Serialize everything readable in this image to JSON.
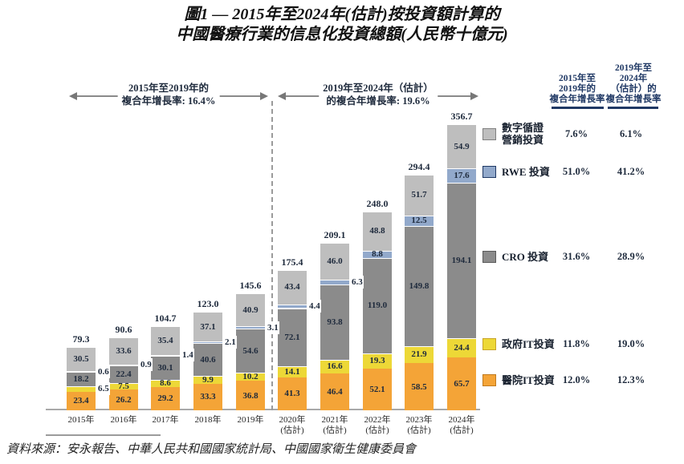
{
  "title": {
    "line1": "圖1 — 2015年至2024年(估計)按投資額計算的",
    "line2": "中國醫療行業的信息化投資總額(人民幣十億元)"
  },
  "period_annotations": {
    "left": {
      "line1": "2015年至2019年的",
      "line2": "複合年增長率: 16.4%"
    },
    "right": {
      "line1": "2019年至2024年（估計）",
      "line2": "的複合年增長率: 19.6%"
    }
  },
  "cagr_columns": {
    "col1_header": "2015年至\n2019年的\n複合年增長率",
    "col2_header": "2019年至\n2024年\n（估計）的\n複合年增長率"
  },
  "chart_data": {
    "type": "bar",
    "stacked": true,
    "title": "中國醫療行業的信息化投資總額",
    "unit": "人民幣十億元",
    "ylim": [
      0,
      360
    ],
    "gridlines": false,
    "categories": [
      "2015年",
      "2016年",
      "2017年",
      "2018年",
      "2019年",
      "2020年\n(估計)",
      "2021年\n(估計)",
      "2022年\n(估計)",
      "2023年\n(估計)",
      "2024年\n(估計)"
    ],
    "series": [
      {
        "key": "hospital-it",
        "name": "醫院IT投資",
        "color": "#F4A437",
        "values": [
          23.4,
          26.2,
          29.2,
          33.3,
          36.8,
          41.3,
          46.4,
          52.1,
          58.5,
          65.7
        ],
        "labels": [
          "23.4",
          "26.2",
          "29.2",
          "33.3",
          "36.8",
          "41.3",
          "46.4",
          "52.1",
          "58.5",
          "65.7"
        ],
        "label_outside": []
      },
      {
        "key": "government-it",
        "name": "政府IT投資",
        "color": "#EDD837",
        "values": [
          6.5,
          7.5,
          8.6,
          9.9,
          10.2,
          14.1,
          16.6,
          19.3,
          21.9,
          24.4
        ],
        "labels": [
          "6.5",
          "7.5",
          "8.6",
          "9.9",
          "10.2",
          "14.1",
          "16.6",
          "19.3",
          "21.9",
          "24.4"
        ],
        "label_outside": [
          0
        ]
      },
      {
        "key": "cro",
        "name": "CRO 投資",
        "color": "#8B8B8B",
        "values": [
          18.2,
          22.4,
          30.1,
          40.6,
          54.6,
          72.1,
          93.8,
          119.0,
          149.8,
          194.1
        ],
        "labels": [
          "18.2",
          "22.4",
          "30.1",
          "40.6",
          "54.6",
          "72.1",
          "93.8",
          "119.0",
          "149.8",
          "194.1"
        ],
        "label_outside": []
      },
      {
        "key": "rwe",
        "name": "RWE 投資",
        "color": "#92A9CB",
        "values": [
          0.6,
          0.9,
          1.4,
          2.1,
          3.1,
          4.4,
          6.3,
          8.8,
          12.5,
          17.6
        ],
        "labels": [
          "0.6",
          "0.9",
          "1.4",
          "2.1",
          "3.1",
          "4.4",
          "6.3",
          "8.8",
          "12.5",
          "17.6"
        ],
        "label_outside": [
          0,
          1,
          2,
          3,
          4,
          5,
          6
        ]
      },
      {
        "key": "digital-evidence-marketing",
        "name": "數字循證營銷投資",
        "color": "#BEBEBE",
        "values": [
          30.5,
          33.6,
          35.4,
          37.1,
          40.9,
          43.4,
          46.0,
          48.8,
          51.7,
          54.9
        ],
        "labels": [
          "30.5",
          "33.6",
          "35.4",
          "37.1",
          "40.9",
          "43.4",
          "46.0",
          "48.8",
          "51.7",
          "54.9"
        ],
        "label_outside": []
      }
    ],
    "totals": [
      "79.3",
      "90.6",
      "104.7",
      "123.0",
      "145.6",
      "175.4",
      "209.1",
      "248.0",
      "294.4",
      "356.7"
    ]
  },
  "legend": [
    {
      "label": "數字循證\n營銷投資",
      "color": "#BEBEBE",
      "border": "#808080",
      "cagr_2015_2019": "7.6%",
      "cagr_2019_2024": "6.1%"
    },
    {
      "label": "RWE 投資",
      "color": "#92A9CB",
      "border": "#1F3864",
      "cagr_2015_2019": "51.0%",
      "cagr_2019_2024": "41.2%"
    },
    {
      "label": "CRO 投資",
      "color": "#8B8B8B",
      "border": "#5A5A5A",
      "cagr_2015_2019": "31.6%",
      "cagr_2019_2024": "28.9%"
    },
    {
      "label": "政府IT投資",
      "color": "#EDD837",
      "border": "#C8A428",
      "cagr_2015_2019": "11.8%",
      "cagr_2019_2024": "19.0%"
    },
    {
      "label": "醫院IT投資",
      "color": "#F4A437",
      "border": "#C07A1E",
      "cagr_2015_2019": "12.0%",
      "cagr_2019_2024": "12.3%"
    }
  ],
  "source": "資料來源：安永報告、中華人民共和國國家統計局、中國國家衛生健康委員會"
}
